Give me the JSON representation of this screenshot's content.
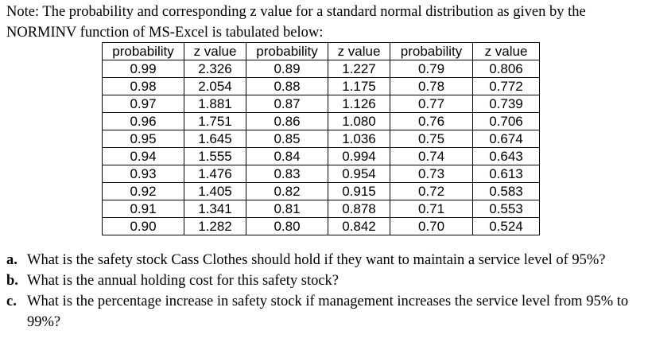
{
  "note": "Note: The probability and corresponding z value for a standard normal distribution as given by the NORMINV function of MS-Excel is tabulated below:",
  "table": {
    "headers": [
      "probability",
      "z value",
      "probability",
      "z value",
      "probability",
      "z value"
    ],
    "rows": [
      [
        "0.99",
        "2.326",
        "0.89",
        "1.227",
        "0.79",
        "0.806"
      ],
      [
        "0.98",
        "2.054",
        "0.88",
        "1.175",
        "0.78",
        "0.772"
      ],
      [
        "0.97",
        "1.881",
        "0.87",
        "1.126",
        "0.77",
        "0.739"
      ],
      [
        "0.96",
        "1.751",
        "0.86",
        "1.080",
        "0.76",
        "0.706"
      ],
      [
        "0.95",
        "1.645",
        "0.85",
        "1.036",
        "0.75",
        "0.674"
      ],
      [
        "0.94",
        "1.555",
        "0.84",
        "0.994",
        "0.74",
        "0.643"
      ],
      [
        "0.93",
        "1.476",
        "0.83",
        "0.954",
        "0.73",
        "0.613"
      ],
      [
        "0.92",
        "1.405",
        "0.82",
        "0.915",
        "0.72",
        "0.583"
      ],
      [
        "0.91",
        "1.341",
        "0.81",
        "0.878",
        "0.71",
        "0.553"
      ],
      [
        "0.90",
        "1.282",
        "0.80",
        "0.842",
        "0.70",
        "0.524"
      ]
    ]
  },
  "questions": [
    {
      "label": "a.",
      "text": "What is the safety stock Cass Clothes should hold if they want to maintain a service level of 95%?"
    },
    {
      "label": "b.",
      "text": "What is the annual holding cost for this safety stock?"
    },
    {
      "label": "c.",
      "text": "What is the percentage increase in safety stock if management increases the service level from 95% to 99%?"
    }
  ]
}
